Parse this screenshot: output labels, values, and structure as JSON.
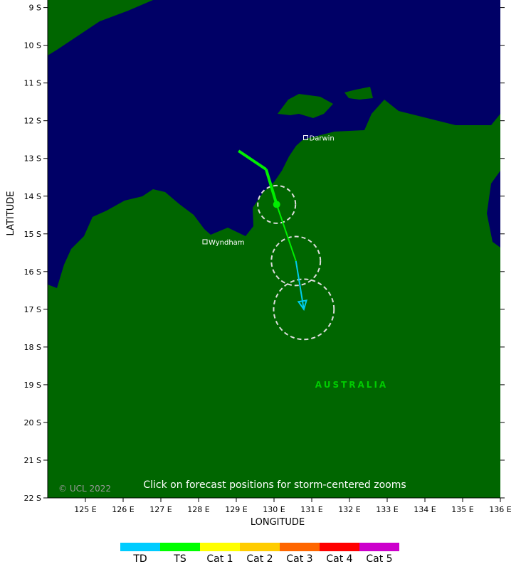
{
  "map": {
    "x_axis_title": "LONGITUDE",
    "y_axis_title": "LATITUDE",
    "xlim": [
      124,
      136
    ],
    "ylim": [
      8.8,
      22
    ],
    "xticks": [
      {
        "value": 125,
        "label": "125 E"
      },
      {
        "value": 126,
        "label": "126 E"
      },
      {
        "value": 127,
        "label": "127 E"
      },
      {
        "value": 128,
        "label": "128 E"
      },
      {
        "value": 129,
        "label": "129 E"
      },
      {
        "value": 130,
        "label": "130 E"
      },
      {
        "value": 131,
        "label": "131 E"
      },
      {
        "value": 132,
        "label": "132 E"
      },
      {
        "value": 133,
        "label": "133 E"
      },
      {
        "value": 134,
        "label": "134 E"
      },
      {
        "value": 135,
        "label": "135 E"
      },
      {
        "value": 136,
        "label": "136 E"
      }
    ],
    "yticks": [
      {
        "value": 9,
        "label": "9 S"
      },
      {
        "value": 10,
        "label": "10 S"
      },
      {
        "value": 11,
        "label": "11 S"
      },
      {
        "value": 12,
        "label": "12 S"
      },
      {
        "value": 13,
        "label": "13 S"
      },
      {
        "value": 14,
        "label": "14 S"
      },
      {
        "value": 15,
        "label": "15 S"
      },
      {
        "value": 16,
        "label": "16 S"
      },
      {
        "value": 17,
        "label": "17 S"
      },
      {
        "value": 18,
        "label": "18 S"
      },
      {
        "value": 19,
        "label": "19 S"
      },
      {
        "value": 20,
        "label": "20 S"
      },
      {
        "value": 21,
        "label": "21 S"
      },
      {
        "value": 22,
        "label": "22 S"
      }
    ]
  },
  "places": [
    {
      "label": "Darwin",
      "lon": 130.84,
      "lat": 12.45
    },
    {
      "label": "Wyndham",
      "lon": 128.17,
      "lat": 15.21
    }
  ],
  "region_label": "AUSTRALIA",
  "track": {
    "lon": [
      129.06,
      129.79,
      130.07,
      130.58,
      130.79
    ],
    "lat": [
      12.8,
      13.29,
      14.22,
      15.72,
      17.0
    ],
    "segment_colors": [
      "#00ee00",
      "#00ee00",
      "#00ee00",
      "#00ccee"
    ],
    "current_index": 2
  },
  "forecast_circles": [
    {
      "lon": 130.07,
      "lat": 14.22,
      "radius": 0.5
    },
    {
      "lon": 130.58,
      "lat": 15.72,
      "radius": 0.65
    },
    {
      "lon": 130.79,
      "lat": 17.0,
      "radius": 0.8
    }
  ],
  "note": "Click on forecast positions for storm-centered zooms",
  "copyright": "© UCL 2022",
  "legend": [
    {
      "label": "TD",
      "color": "#00ccff"
    },
    {
      "label": "TS",
      "color": "#00ff00"
    },
    {
      "label": "Cat 1",
      "color": "#ffff00"
    },
    {
      "label": "Cat 2",
      "color": "#ffcc00"
    },
    {
      "label": "Cat 3",
      "color": "#ff6600"
    },
    {
      "label": "Cat 4",
      "color": "#ff0000"
    },
    {
      "label": "Cat 5",
      "color": "#cc00cc"
    }
  ]
}
